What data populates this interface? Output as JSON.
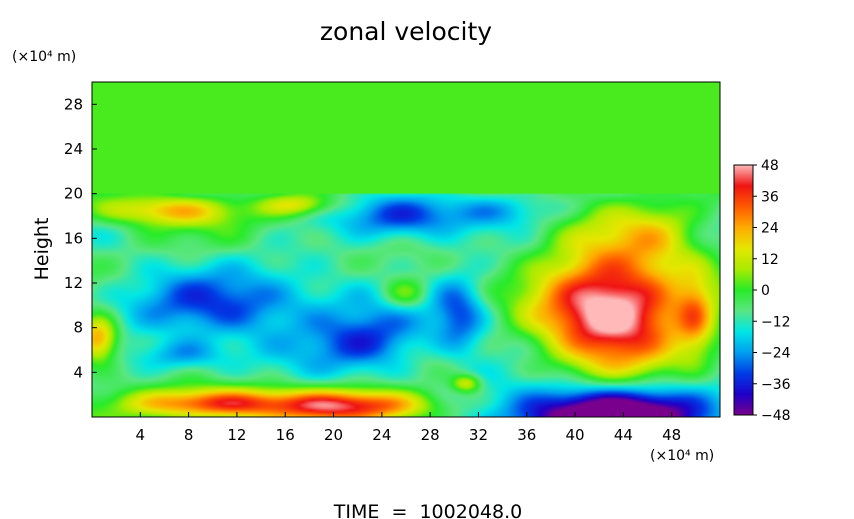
{
  "chart_data": {
    "type": "heatmap",
    "title": "zonal velocity",
    "ylabel": "Height",
    "xlabel": "",
    "x_unit_label": "(×10⁴ m)",
    "y_unit_label": "(×10⁴ m)",
    "footer": "TIME  =  1002048.0",
    "xlim": [
      0,
      52
    ],
    "ylim": [
      0,
      30
    ],
    "x_ticks": [
      4,
      8,
      12,
      16,
      20,
      24,
      28,
      32,
      36,
      40,
      44,
      48
    ],
    "y_ticks": [
      4,
      8,
      12,
      16,
      20,
      24,
      28
    ],
    "grid": false,
    "colorbar": {
      "range": [
        -48,
        48
      ],
      "ticks": [
        48,
        36,
        24,
        12,
        0,
        -12,
        -24,
        -36,
        -48
      ],
      "tick_labels": [
        "48",
        "36",
        "24",
        "12",
        "0",
        "−12",
        "−24",
        "−36",
        "−48"
      ]
    },
    "upper_layer": {
      "y_from": 20,
      "y_to": 30,
      "value": 2
    },
    "field_blobs": [
      {
        "x": 26,
        "y": 10,
        "rx": 40,
        "ry": 14,
        "amp": -12
      },
      {
        "x": 11,
        "y": 10,
        "rx": 9,
        "ry": 2.8,
        "amp": -22
      },
      {
        "x": 23,
        "y": 6.5,
        "rx": 4.5,
        "ry": 2.5,
        "amp": -24
      },
      {
        "x": 25.5,
        "y": 18,
        "rx": 5,
        "ry": 2,
        "amp": -26
      },
      {
        "x": 30.5,
        "y": 9,
        "rx": 2,
        "ry": 3.5,
        "amp": -18
      },
      {
        "x": 7.5,
        "y": 5.5,
        "rx": 3.5,
        "ry": 1.4,
        "amp": -16
      },
      {
        "x": 34,
        "y": 18.5,
        "rx": 5,
        "ry": 1.5,
        "amp": -12
      },
      {
        "x": 43,
        "y": 9.8,
        "rx": 6.2,
        "ry": 6,
        "amp": 64
      },
      {
        "x": 47,
        "y": 16.5,
        "rx": 3,
        "ry": 2.5,
        "amp": 10
      },
      {
        "x": 6,
        "y": 18.5,
        "rx": 6,
        "ry": 1.3,
        "amp": 26
      },
      {
        "x": 17,
        "y": 19,
        "rx": 3,
        "ry": 1,
        "amp": 22
      },
      {
        "x": 10,
        "y": 1.2,
        "rx": 7,
        "ry": 1.3,
        "amp": 42
      },
      {
        "x": 22,
        "y": 1.0,
        "rx": 6.5,
        "ry": 1.5,
        "amp": 50
      },
      {
        "x": 43,
        "y": 0.0,
        "rx": 8.5,
        "ry": 2.8,
        "amp": -66
      },
      {
        "x": 0.5,
        "y": 7,
        "rx": 1.6,
        "ry": 2,
        "amp": 36
      },
      {
        "x": 26,
        "y": 11,
        "rx": 2,
        "ry": 1.5,
        "amp": 20
      },
      {
        "x": 31,
        "y": 3,
        "rx": 1.2,
        "ry": 0.8,
        "amp": 24
      },
      {
        "x": 50,
        "y": 9,
        "rx": 1.5,
        "ry": 3.5,
        "amp": 22
      },
      {
        "x": 20,
        "y": 16,
        "rx": 8,
        "ry": 3,
        "amp": 4
      }
    ],
    "noise": [
      {
        "ax": 0.9,
        "ay": 1.3,
        "px": 0.5,
        "py": 1.1,
        "amp": 4
      },
      {
        "ax": 0.35,
        "ay": 0.55,
        "px": 1.7,
        "py": 0.3,
        "amp": 5
      },
      {
        "ax": 0.21,
        "ay": 0.8,
        "px": 2.3,
        "py": 1.9,
        "amp": 3
      }
    ]
  }
}
